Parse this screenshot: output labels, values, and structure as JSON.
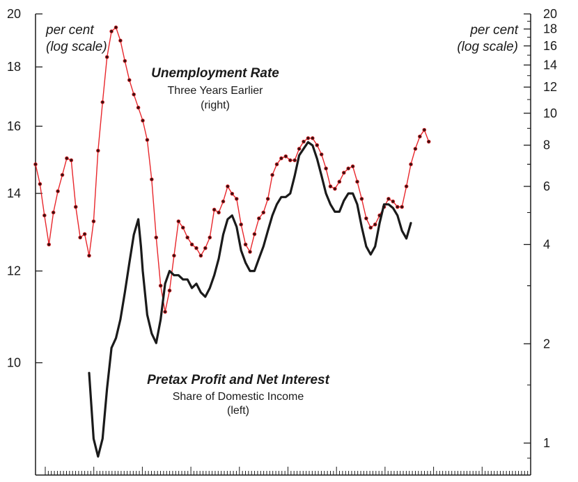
{
  "chart_data": {
    "type": "line",
    "scale": "log",
    "grid": false,
    "left_axis": {
      "unit_lines": [
        "per cent",
        "(log scale)"
      ],
      "ticks": [
        10,
        12,
        14,
        16,
        18,
        20
      ],
      "range": [
        8.0,
        20.0
      ]
    },
    "right_axis": {
      "unit_lines": [
        "per cent",
        "(log scale)"
      ],
      "ticks": [
        1,
        2,
        4,
        6,
        8,
        10,
        12,
        14,
        16,
        18,
        20
      ],
      "range": [
        0.8,
        20.0
      ]
    },
    "x_axis": {
      "ticks": 40,
      "minor_ticks_per_major": 4
    },
    "series": [
      {
        "name": "Unemployment Rate",
        "subtitle_lines": [
          "Three Years Earlier",
          "(right)"
        ],
        "axis": "right",
        "color": "#e8262b",
        "markers": true,
        "points": [
          [
            0,
            7.0
          ],
          [
            0.25,
            6.1
          ],
          [
            0.5,
            4.9
          ],
          [
            0.75,
            4.0
          ],
          [
            1.0,
            5.0
          ],
          [
            1.25,
            5.8
          ],
          [
            1.5,
            6.5
          ],
          [
            1.75,
            7.3
          ],
          [
            2.0,
            7.2
          ],
          [
            2.25,
            5.2
          ],
          [
            2.5,
            4.2
          ],
          [
            2.75,
            4.3
          ],
          [
            3.0,
            3.7
          ],
          [
            3.25,
            4.7
          ],
          [
            3.5,
            7.7
          ],
          [
            3.75,
            10.8
          ],
          [
            4.0,
            14.8
          ],
          [
            4.25,
            17.7
          ],
          [
            4.5,
            18.2
          ],
          [
            4.75,
            16.6
          ],
          [
            5.0,
            14.4
          ],
          [
            5.25,
            12.6
          ],
          [
            5.5,
            11.4
          ],
          [
            5.75,
            10.4
          ],
          [
            6.0,
            9.5
          ],
          [
            6.25,
            8.3
          ],
          [
            6.5,
            6.3
          ],
          [
            6.75,
            4.2
          ],
          [
            7.0,
            3.0
          ],
          [
            7.25,
            2.5
          ],
          [
            7.5,
            2.9
          ],
          [
            7.75,
            3.7
          ],
          [
            8.0,
            4.7
          ],
          [
            8.25,
            4.5
          ],
          [
            8.5,
            4.2
          ],
          [
            8.75,
            4.0
          ],
          [
            9.0,
            3.9
          ],
          [
            9.25,
            3.7
          ],
          [
            9.5,
            3.9
          ],
          [
            9.75,
            4.2
          ],
          [
            10.0,
            5.1
          ],
          [
            10.25,
            5.0
          ],
          [
            10.5,
            5.4
          ],
          [
            10.75,
            6.0
          ],
          [
            11.0,
            5.7
          ],
          [
            11.25,
            5.5
          ],
          [
            11.5,
            4.6
          ],
          [
            11.75,
            4.0
          ],
          [
            12.0,
            3.8
          ],
          [
            12.25,
            4.3
          ],
          [
            12.5,
            4.8
          ],
          [
            12.75,
            5.0
          ],
          [
            13.0,
            5.5
          ],
          [
            13.25,
            6.5
          ],
          [
            13.5,
            7.0
          ],
          [
            13.75,
            7.3
          ],
          [
            14.0,
            7.4
          ],
          [
            14.25,
            7.2
          ],
          [
            14.5,
            7.2
          ],
          [
            14.75,
            7.8
          ],
          [
            15.0,
            8.2
          ],
          [
            15.25,
            8.4
          ],
          [
            15.5,
            8.4
          ],
          [
            15.75,
            8.0
          ],
          [
            16.0,
            7.5
          ],
          [
            16.25,
            6.8
          ],
          [
            16.5,
            6.0
          ],
          [
            16.75,
            5.9
          ],
          [
            17.0,
            6.2
          ],
          [
            17.25,
            6.6
          ],
          [
            17.5,
            6.8
          ],
          [
            17.75,
            6.9
          ],
          [
            18.0,
            6.2
          ],
          [
            18.25,
            5.5
          ],
          [
            18.5,
            4.8
          ],
          [
            18.75,
            4.5
          ],
          [
            19.0,
            4.6
          ],
          [
            19.25,
            4.9
          ],
          [
            19.5,
            5.2
          ],
          [
            19.75,
            5.5
          ],
          [
            20.0,
            5.4
          ],
          [
            20.25,
            5.2
          ],
          [
            20.5,
            5.2
          ],
          [
            20.75,
            6.0
          ],
          [
            21.0,
            7.0
          ],
          [
            21.25,
            7.8
          ],
          [
            21.5,
            8.5
          ],
          [
            21.75,
            8.9
          ],
          [
            22.0,
            8.2
          ]
        ]
      },
      {
        "name": "Pretax Profit and Net Interest",
        "subtitle_lines": [
          "Share of Domestic Income",
          "(left)"
        ],
        "axis": "left",
        "color": "#1a1a1a",
        "markers": false,
        "points": [
          [
            3.0,
            9.8
          ],
          [
            3.25,
            8.6
          ],
          [
            3.5,
            8.3
          ],
          [
            3.75,
            8.6
          ],
          [
            4.0,
            9.5
          ],
          [
            4.25,
            10.3
          ],
          [
            4.5,
            10.5
          ],
          [
            4.75,
            10.9
          ],
          [
            5.0,
            11.5
          ],
          [
            5.25,
            12.2
          ],
          [
            5.5,
            12.9
          ],
          [
            5.75,
            13.3
          ],
          [
            5.9,
            12.6
          ],
          [
            6.0,
            12.0
          ],
          [
            6.25,
            11.0
          ],
          [
            6.5,
            10.6
          ],
          [
            6.75,
            10.4
          ],
          [
            7.0,
            10.9
          ],
          [
            7.25,
            11.7
          ],
          [
            7.5,
            12.0
          ],
          [
            7.75,
            11.9
          ],
          [
            8.0,
            11.9
          ],
          [
            8.25,
            11.8
          ],
          [
            8.5,
            11.8
          ],
          [
            8.75,
            11.6
          ],
          [
            9.0,
            11.7
          ],
          [
            9.25,
            11.5
          ],
          [
            9.5,
            11.4
          ],
          [
            9.75,
            11.6
          ],
          [
            10.0,
            11.9
          ],
          [
            10.25,
            12.3
          ],
          [
            10.5,
            12.9
          ],
          [
            10.75,
            13.3
          ],
          [
            11.0,
            13.4
          ],
          [
            11.25,
            13.1
          ],
          [
            11.5,
            12.5
          ],
          [
            11.75,
            12.2
          ],
          [
            12.0,
            12.0
          ],
          [
            12.25,
            12.0
          ],
          [
            12.5,
            12.3
          ],
          [
            12.75,
            12.6
          ],
          [
            13.0,
            13.0
          ],
          [
            13.25,
            13.4
          ],
          [
            13.5,
            13.7
          ],
          [
            13.75,
            13.9
          ],
          [
            14.0,
            13.9
          ],
          [
            14.25,
            14.0
          ],
          [
            14.5,
            14.5
          ],
          [
            14.75,
            15.1
          ],
          [
            15.0,
            15.3
          ],
          [
            15.25,
            15.5
          ],
          [
            15.5,
            15.4
          ],
          [
            15.75,
            15.0
          ],
          [
            16.0,
            14.5
          ],
          [
            16.25,
            14.0
          ],
          [
            16.5,
            13.7
          ],
          [
            16.75,
            13.5
          ],
          [
            17.0,
            13.5
          ],
          [
            17.25,
            13.8
          ],
          [
            17.5,
            14.0
          ],
          [
            17.75,
            14.0
          ],
          [
            18.0,
            13.7
          ],
          [
            18.25,
            13.1
          ],
          [
            18.5,
            12.6
          ],
          [
            18.75,
            12.4
          ],
          [
            19.0,
            12.6
          ],
          [
            19.25,
            13.2
          ],
          [
            19.5,
            13.7
          ],
          [
            19.75,
            13.7
          ],
          [
            20.0,
            13.6
          ],
          [
            20.25,
            13.4
          ],
          [
            20.5,
            13.0
          ],
          [
            20.75,
            12.8
          ],
          [
            21.0,
            13.2
          ]
        ]
      }
    ]
  }
}
